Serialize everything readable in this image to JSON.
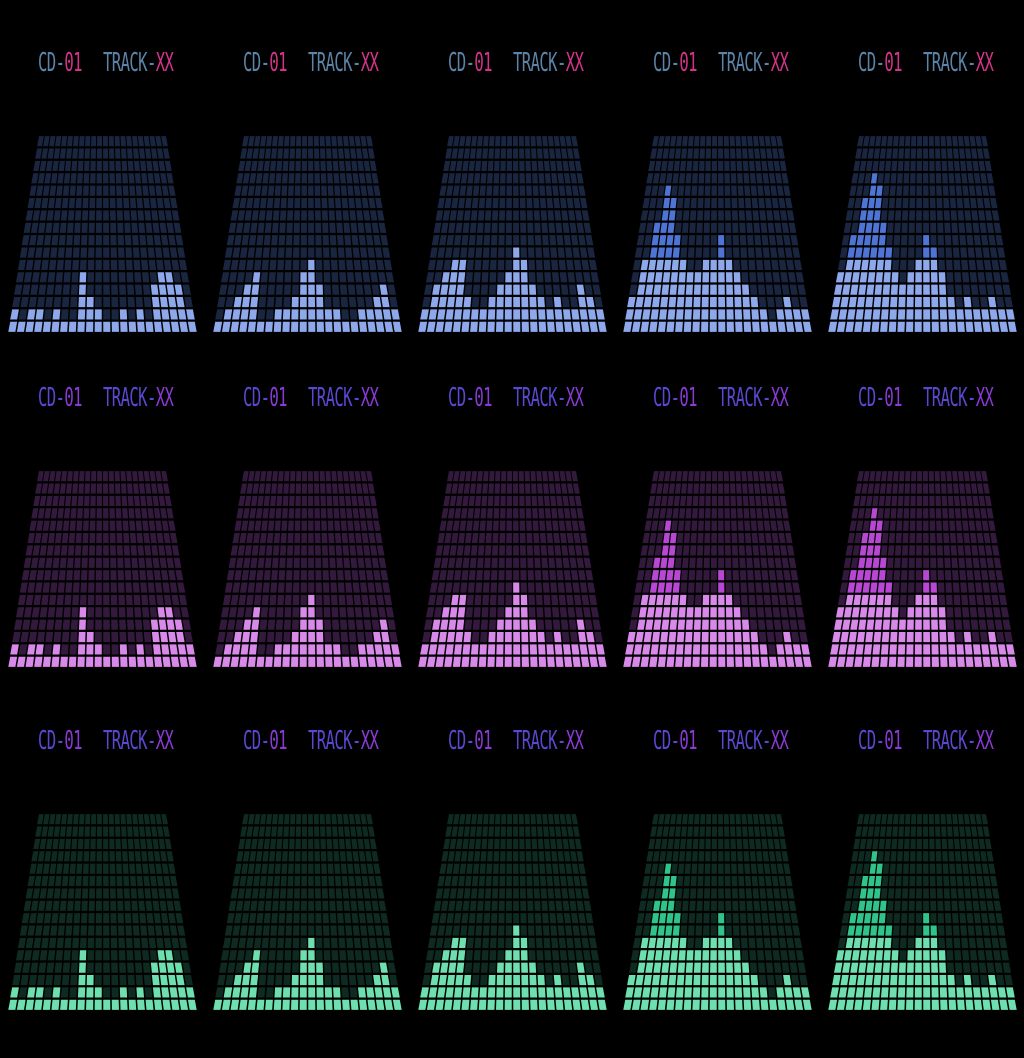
{
  "labels": {
    "disc_prefix": "CD-",
    "disc_number": "01",
    "track_prefix": "TRACK-",
    "track_number": "XX"
  },
  "themes": [
    {
      "name": "blue",
      "lit": "#8ea8ec",
      "bright": "#4e74d6",
      "dim": "#1a2640",
      "label_prefix_color": "#5b84a8",
      "label_value_color": "#d6338a"
    },
    {
      "name": "magenta",
      "lit": "#d889ea",
      "bright": "#b848d4",
      "dim": "#331a3d",
      "label_prefix_color": "#5a48d0",
      "label_value_color": "#8a3ad8"
    },
    {
      "name": "green",
      "lit": "#6ee0b0",
      "bright": "#2ec48a",
      "dim": "#0f2a20",
      "label_prefix_color": "#5a48d0",
      "label_value_color": "#8a3ad8"
    }
  ],
  "equalizer": {
    "rows": 16,
    "columns": 22,
    "frames": [
      [
        2,
        1,
        2,
        2,
        1,
        2,
        1,
        1,
        5,
        3,
        2,
        1,
        1,
        2,
        1,
        2,
        1,
        4,
        5,
        5,
        4,
        2
      ],
      [
        1,
        2,
        3,
        4,
        5,
        1,
        1,
        2,
        2,
        3,
        5,
        6,
        4,
        2,
        2,
        1,
        1,
        2,
        2,
        3,
        4,
        2
      ],
      [
        2,
        4,
        5,
        6,
        6,
        3,
        2,
        2,
        3,
        4,
        5,
        7,
        6,
        4,
        3,
        2,
        3,
        2,
        2,
        4,
        3,
        2
      ],
      [
        3,
        6,
        9,
        12,
        11,
        8,
        6,
        5,
        5,
        6,
        6,
        8,
        6,
        5,
        4,
        3,
        2,
        1,
        2,
        3,
        2,
        2
      ],
      [
        5,
        8,
        11,
        13,
        12,
        9,
        7,
        5,
        4,
        5,
        6,
        8,
        7,
        5,
        3,
        2,
        3,
        2,
        2,
        3,
        2,
        2
      ]
    ]
  }
}
